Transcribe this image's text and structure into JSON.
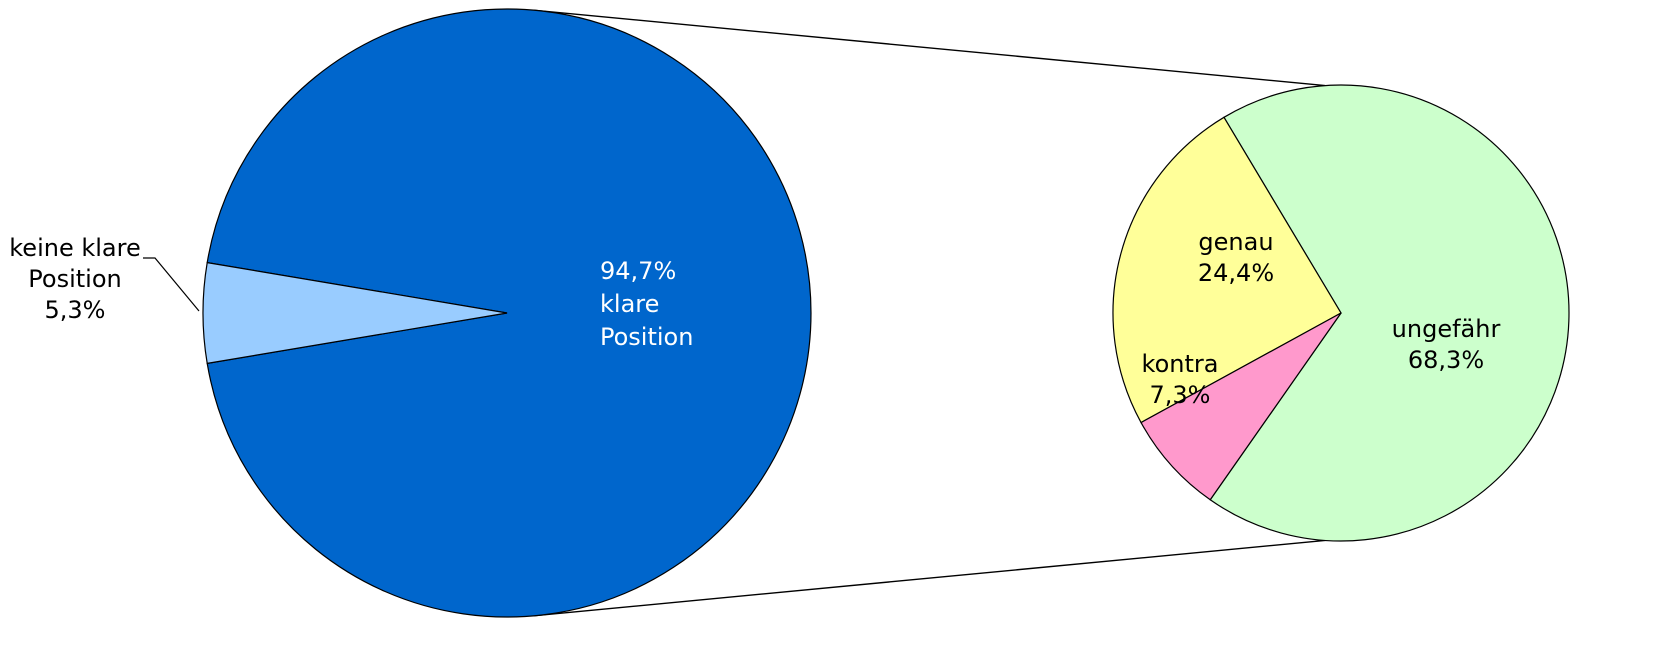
{
  "colors": {
    "klare": "#0066CC",
    "keine": "#99CCFF",
    "ungefaehr": "#CCFFCC",
    "genau": "#FFFF99",
    "kontra": "#FF99CC",
    "outline": "#000000"
  },
  "chart_data": [
    {
      "type": "pie",
      "values": [
        94.7,
        5.3
      ],
      "labels": [
        [
          "94,7%",
          "klare",
          "Position"
        ],
        [
          "keine klare",
          "Position",
          "5,3%"
        ]
      ]
    },
    {
      "type": "pie",
      "values": [
        68.3,
        24.4,
        7.3
      ],
      "labels": [
        [
          "ungefähr",
          "68,3%"
        ],
        [
          "genau",
          "24,4%"
        ],
        [
          "kontra",
          "7,3%"
        ]
      ]
    }
  ]
}
